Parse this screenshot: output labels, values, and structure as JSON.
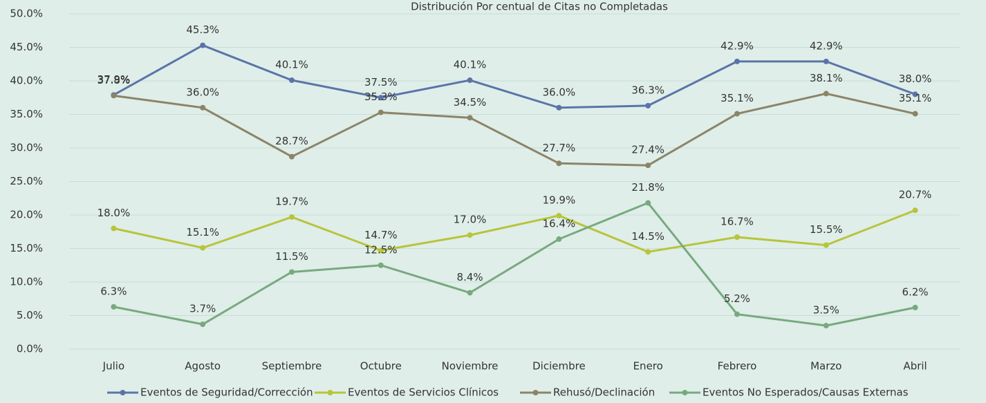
{
  "chart_data": {
    "type": "line",
    "title": "Distribución Por centual de Citas no Completadas",
    "categories": [
      "Julio",
      "Agosto",
      "Septiembre",
      "Octubre",
      "Noviembre",
      "Diciembre",
      "Enero",
      "Febrero",
      "Marzo",
      "Abril"
    ],
    "series": [
      {
        "name": "Eventos de Seguridad/Corrección",
        "color": "#5b74a8",
        "values": [
          37.9,
          45.3,
          40.1,
          37.5,
          40.1,
          36.0,
          36.3,
          42.9,
          42.9,
          38.0
        ],
        "value_labels": [
          "37.9%",
          "45.3%",
          "40.1%",
          "37.5%",
          "40.1%",
          "36.0%",
          "36.3%",
          "42.9%",
          "42.9%",
          "38.0%"
        ]
      },
      {
        "name": "Eventos de Servicios Clínicos",
        "color": "#b8c43a",
        "values": [
          18.0,
          15.1,
          19.7,
          14.7,
          17.0,
          19.9,
          14.5,
          16.7,
          15.5,
          20.7
        ],
        "value_labels": [
          "18.0%",
          "15.1%",
          "19.7%",
          "14.7%",
          "17.0%",
          "19.9%",
          "14.5%",
          "16.7%",
          "15.5%",
          "20.7%"
        ]
      },
      {
        "name": "Rehusó/Declinación",
        "color": "#8b8468",
        "values": [
          37.8,
          36.0,
          28.7,
          35.3,
          34.5,
          27.7,
          27.4,
          35.1,
          38.1,
          35.1
        ],
        "value_labels": [
          "37.8%",
          "36.0%",
          "28.7%",
          "35.3%",
          "34.5%",
          "27.7%",
          "27.4%",
          "35.1%",
          "38.1%",
          "35.1%"
        ]
      },
      {
        "name": "Eventos No Esperados/Causas Externas",
        "color": "#78a97f",
        "values": [
          6.3,
          3.7,
          11.5,
          12.5,
          8.4,
          16.4,
          21.8,
          5.2,
          3.5,
          6.2
        ],
        "value_labels": [
          "6.3%",
          "3.7%",
          "11.5%",
          "12.5%",
          "8.4%",
          "16.4%",
          "21.8%",
          "5.2%",
          "3.5%",
          "6.2%"
        ]
      }
    ],
    "ylim": [
      0,
      50
    ],
    "yticks": [
      {
        "value": 0,
        "label": "0.0%"
      },
      {
        "value": 5,
        "label": "5.0%"
      },
      {
        "value": 10,
        "label": "10.0%"
      },
      {
        "value": 15,
        "label": "15.0%"
      },
      {
        "value": 20,
        "label": "20.0%"
      },
      {
        "value": 25,
        "label": "25.0%"
      },
      {
        "value": 30,
        "label": "30.0%"
      },
      {
        "value": 35,
        "label": "35.0%"
      },
      {
        "value": 40,
        "label": "40.0%"
      },
      {
        "value": 45,
        "label": "45.0%"
      },
      {
        "value": 50,
        "label": "50.0%"
      }
    ],
    "grid": true,
    "legend": "bottom"
  }
}
